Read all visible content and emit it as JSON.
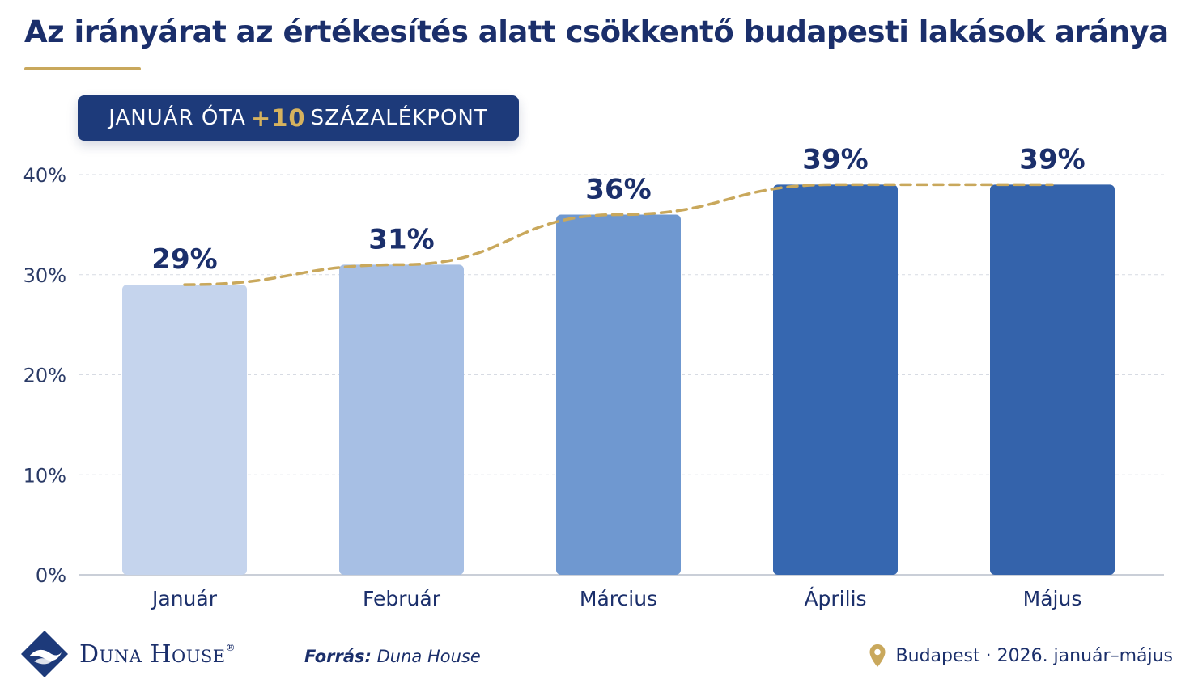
{
  "title": "Az irányárat az értékesítés alatt csökkentő budapesti lakások aránya",
  "badge": {
    "prefix": "JANUÁR ÓTA",
    "accent": "+10",
    "suffix": "SZÁZALÉKPONT"
  },
  "colors": {
    "title": "#1b2f6b",
    "gold": "#c9a85c",
    "badge_bg": "#1d3a7a",
    "bars": [
      "#c5d4ed",
      "#a7bfe4",
      "#6f98d0",
      "#3667b0",
      "#3463ab"
    ],
    "grid": "#d7dbe3",
    "axis_text": "#2a3a66",
    "label_text": "#1b2f6b"
  },
  "chart_data": {
    "type": "bar",
    "categories": [
      "Január",
      "Február",
      "Március",
      "Április",
      "Május"
    ],
    "values": [
      29,
      31,
      36,
      39,
      39
    ],
    "value_labels": [
      "29%",
      "31%",
      "36%",
      "39%",
      "39%"
    ],
    "yticks": [
      "0%",
      "10%",
      "20%",
      "30%",
      "40%"
    ],
    "ylim": [
      0,
      40
    ],
    "grid": true,
    "trend_line": "dashed",
    "xlabel": "",
    "ylabel": ""
  },
  "footer": {
    "logo_text": "Duna House",
    "logo_mark": "®",
    "logo_icon": "diamond-wave-logo",
    "source_label": "Forrás:",
    "source_value": "Duna House",
    "location_icon": "map-pin-icon",
    "location_text": "Budapest · 2026. január–május"
  }
}
